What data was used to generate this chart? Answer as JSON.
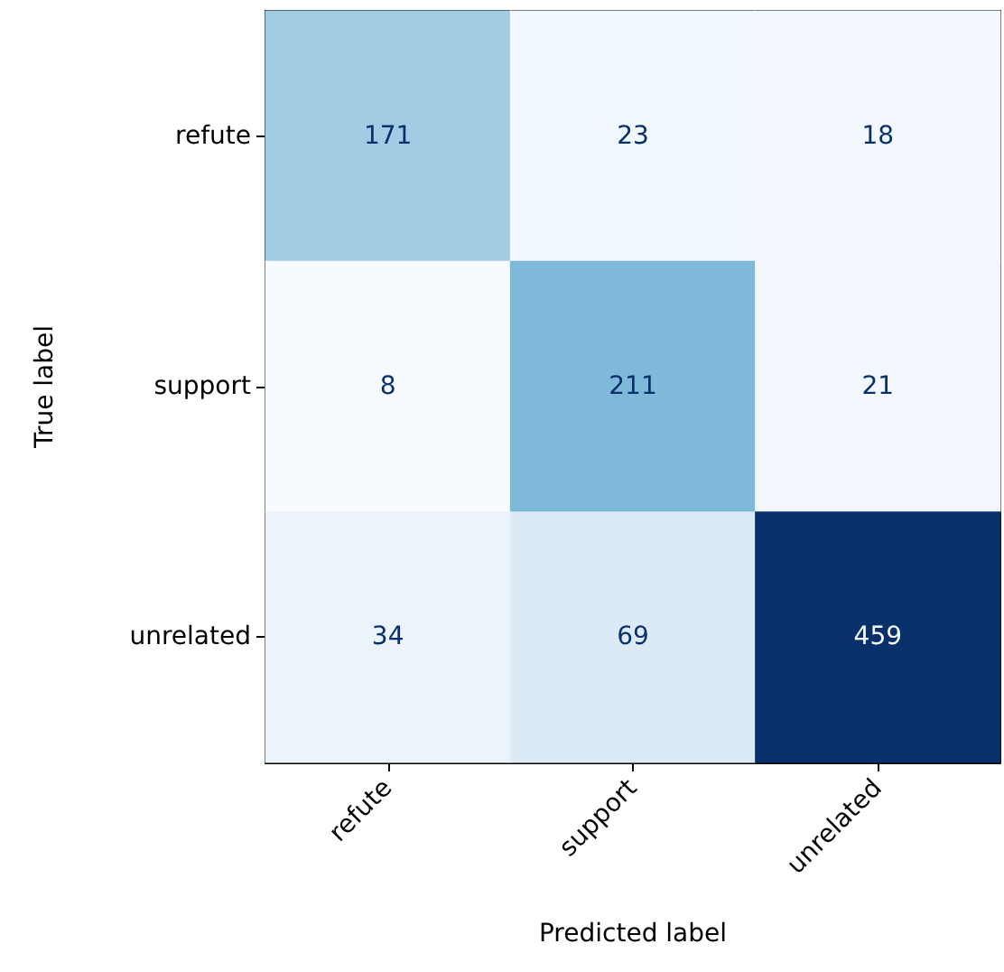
{
  "chart_data": {
    "type": "heatmap",
    "xlabel": "Predicted label",
    "ylabel": "True label",
    "categories": [
      "refute",
      "support",
      "unrelated"
    ],
    "y_categories": [
      "refute",
      "support",
      "unrelated"
    ],
    "cells": [
      [
        171,
        23,
        18
      ],
      [
        8,
        211,
        21
      ],
      [
        34,
        69,
        459
      ]
    ],
    "data_labels": true
  }
}
